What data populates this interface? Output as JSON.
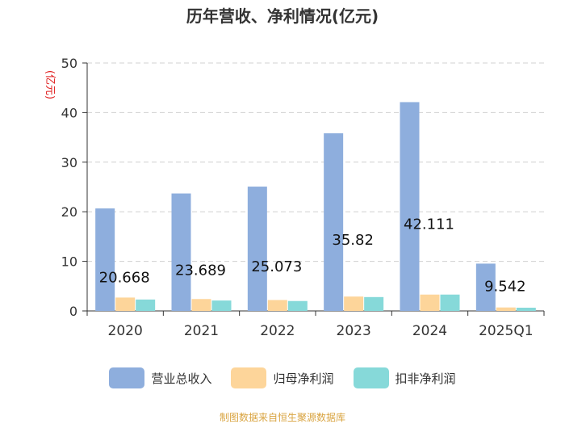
{
  "chart_data": {
    "type": "bar",
    "title": "历年营收、净利情况(亿元)",
    "ylabel": "(亿元)",
    "xlabel": "",
    "ylim": [
      0,
      50
    ],
    "yticks": [
      0,
      10,
      20,
      30,
      40,
      50
    ],
    "categories": [
      "2020",
      "2021",
      "2022",
      "2023",
      "2024",
      "2025Q1"
    ],
    "series": [
      {
        "name": "营业总收入",
        "color": "#8eaedd",
        "values": [
          20.668,
          23.689,
          25.073,
          35.82,
          42.111,
          9.542
        ],
        "labels": [
          "20.668",
          "23.689",
          "25.073",
          "35.82",
          "42.111",
          "9.542"
        ]
      },
      {
        "name": "归母净利润",
        "color": "#fdd59a",
        "values": [
          2.7,
          2.4,
          2.2,
          2.9,
          3.3,
          0.7
        ]
      },
      {
        "name": "扣非净利润",
        "color": "#86d9d9",
        "values": [
          2.3,
          2.1,
          2.0,
          2.8,
          3.3,
          0.65
        ]
      }
    ]
  },
  "source": "制图数据来自恒生聚源数据库"
}
